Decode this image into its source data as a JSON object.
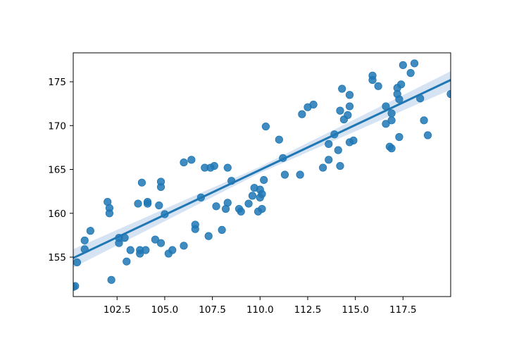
{
  "chart_data": {
    "type": "scatter",
    "title": "",
    "xlabel": "",
    "ylabel": "",
    "xlim": [
      100.2,
      120.0
    ],
    "ylim": [
      150.5,
      178.3
    ],
    "x_ticks": [
      {
        "value": 102.5,
        "label": "102.5"
      },
      {
        "value": 105.0,
        "label": "105.0"
      },
      {
        "value": 107.5,
        "label": "107.5"
      },
      {
        "value": 110.0,
        "label": "110.0"
      },
      {
        "value": 112.5,
        "label": "112.5"
      },
      {
        "value": 115.0,
        "label": "115.0"
      },
      {
        "value": 117.5,
        "label": "117.5"
      }
    ],
    "y_ticks": [
      {
        "value": 155,
        "label": "155"
      },
      {
        "value": 160,
        "label": "160"
      },
      {
        "value": 165,
        "label": "165"
      },
      {
        "value": 170,
        "label": "170"
      },
      {
        "value": 175,
        "label": "175"
      }
    ],
    "grid": false,
    "colors": {
      "points": "#1f77b4",
      "line": "#1f77b4",
      "band": "#aec7e8"
    },
    "regression": {
      "x": [
        100.2,
        120.0
      ],
      "y": [
        154.9,
        175.2
      ]
    },
    "confidence_band": {
      "x": [
        100.2,
        110.0,
        120.0
      ],
      "upper": [
        155.9,
        165.3,
        176.2
      ],
      "lower": [
        153.8,
        164.6,
        174.1
      ]
    },
    "points": [
      {
        "x": 100.2,
        "y": 151.6
      },
      {
        "x": 100.3,
        "y": 151.7
      },
      {
        "x": 100.4,
        "y": 154.4
      },
      {
        "x": 100.8,
        "y": 156.9
      },
      {
        "x": 100.8,
        "y": 155.9
      },
      {
        "x": 101.1,
        "y": 158.0
      },
      {
        "x": 102.0,
        "y": 161.3
      },
      {
        "x": 102.1,
        "y": 160.6
      },
      {
        "x": 102.1,
        "y": 160.0
      },
      {
        "x": 102.2,
        "y": 152.4
      },
      {
        "x": 102.6,
        "y": 157.2
      },
      {
        "x": 102.6,
        "y": 156.6
      },
      {
        "x": 102.9,
        "y": 157.2
      },
      {
        "x": 103.0,
        "y": 154.5
      },
      {
        "x": 103.2,
        "y": 155.8
      },
      {
        "x": 103.6,
        "y": 161.1
      },
      {
        "x": 103.7,
        "y": 155.8
      },
      {
        "x": 103.7,
        "y": 155.4
      },
      {
        "x": 103.8,
        "y": 163.5
      },
      {
        "x": 104.0,
        "y": 155.8
      },
      {
        "x": 104.1,
        "y": 161.3
      },
      {
        "x": 104.1,
        "y": 161.1
      },
      {
        "x": 104.5,
        "y": 157.0
      },
      {
        "x": 104.7,
        "y": 160.9
      },
      {
        "x": 104.8,
        "y": 163.6
      },
      {
        "x": 104.8,
        "y": 163.0
      },
      {
        "x": 104.8,
        "y": 156.6
      },
      {
        "x": 105.0,
        "y": 159.9
      },
      {
        "x": 105.2,
        "y": 155.4
      },
      {
        "x": 105.4,
        "y": 155.8
      },
      {
        "x": 106.0,
        "y": 165.8
      },
      {
        "x": 106.0,
        "y": 156.3
      },
      {
        "x": 106.4,
        "y": 166.1
      },
      {
        "x": 106.6,
        "y": 158.2
      },
      {
        "x": 106.6,
        "y": 158.7
      },
      {
        "x": 106.9,
        "y": 161.8
      },
      {
        "x": 107.1,
        "y": 165.2
      },
      {
        "x": 107.3,
        "y": 157.4
      },
      {
        "x": 107.4,
        "y": 165.2
      },
      {
        "x": 107.6,
        "y": 165.4
      },
      {
        "x": 107.7,
        "y": 160.8
      },
      {
        "x": 108.0,
        "y": 158.1
      },
      {
        "x": 108.2,
        "y": 160.5
      },
      {
        "x": 108.3,
        "y": 165.2
      },
      {
        "x": 108.3,
        "y": 161.2
      },
      {
        "x": 108.5,
        "y": 163.7
      },
      {
        "x": 108.9,
        "y": 160.5
      },
      {
        "x": 109.0,
        "y": 160.2
      },
      {
        "x": 109.4,
        "y": 161.1
      },
      {
        "x": 109.6,
        "y": 162.0
      },
      {
        "x": 109.7,
        "y": 162.9
      },
      {
        "x": 109.9,
        "y": 160.2
      },
      {
        "x": 110.0,
        "y": 162.7
      },
      {
        "x": 110.0,
        "y": 161.8
      },
      {
        "x": 110.1,
        "y": 162.2
      },
      {
        "x": 110.1,
        "y": 160.5
      },
      {
        "x": 110.2,
        "y": 163.8
      },
      {
        "x": 110.3,
        "y": 169.9
      },
      {
        "x": 111.0,
        "y": 168.4
      },
      {
        "x": 111.2,
        "y": 166.3
      },
      {
        "x": 111.3,
        "y": 164.4
      },
      {
        "x": 112.1,
        "y": 164.4
      },
      {
        "x": 112.2,
        "y": 171.3
      },
      {
        "x": 112.5,
        "y": 172.1
      },
      {
        "x": 112.8,
        "y": 172.4
      },
      {
        "x": 113.3,
        "y": 165.2
      },
      {
        "x": 113.6,
        "y": 166.1
      },
      {
        "x": 113.6,
        "y": 167.9
      },
      {
        "x": 113.9,
        "y": 169.0
      },
      {
        "x": 114.1,
        "y": 167.2
      },
      {
        "x": 114.2,
        "y": 171.7
      },
      {
        "x": 114.2,
        "y": 165.4
      },
      {
        "x": 114.3,
        "y": 174.2
      },
      {
        "x": 114.4,
        "y": 170.7
      },
      {
        "x": 114.6,
        "y": 171.2
      },
      {
        "x": 114.7,
        "y": 173.5
      },
      {
        "x": 114.7,
        "y": 172.2
      },
      {
        "x": 114.7,
        "y": 168.1
      },
      {
        "x": 114.9,
        "y": 168.3
      },
      {
        "x": 115.9,
        "y": 175.2
      },
      {
        "x": 115.9,
        "y": 175.7
      },
      {
        "x": 116.2,
        "y": 174.5
      },
      {
        "x": 116.6,
        "y": 170.2
      },
      {
        "x": 116.6,
        "y": 172.2
      },
      {
        "x": 116.8,
        "y": 167.6
      },
      {
        "x": 116.9,
        "y": 167.4
      },
      {
        "x": 116.9,
        "y": 170.6
      },
      {
        "x": 116.9,
        "y": 171.4
      },
      {
        "x": 117.2,
        "y": 174.3
      },
      {
        "x": 117.2,
        "y": 173.6
      },
      {
        "x": 117.3,
        "y": 173.0
      },
      {
        "x": 117.3,
        "y": 168.7
      },
      {
        "x": 117.4,
        "y": 174.7
      },
      {
        "x": 117.5,
        "y": 176.9
      },
      {
        "x": 117.9,
        "y": 176.0
      },
      {
        "x": 118.1,
        "y": 177.1
      },
      {
        "x": 118.4,
        "y": 173.1
      },
      {
        "x": 118.6,
        "y": 170.6
      },
      {
        "x": 118.8,
        "y": 168.9
      },
      {
        "x": 120.0,
        "y": 173.6
      }
    ]
  }
}
